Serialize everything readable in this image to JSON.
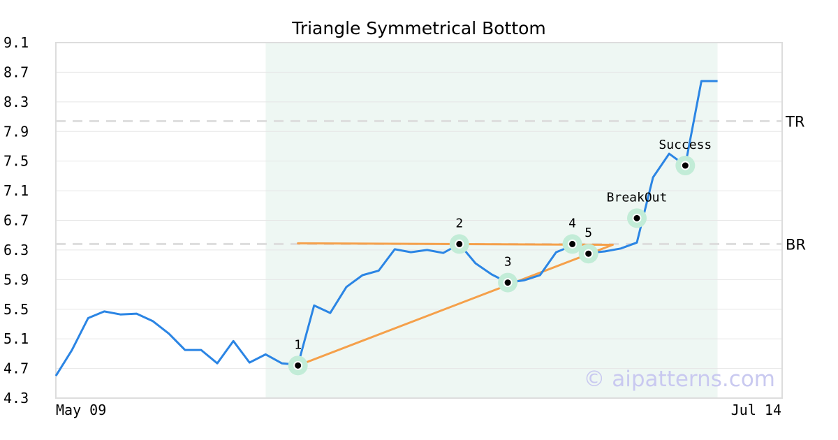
{
  "chart_data": {
    "type": "line",
    "title": "Triangle Symmetrical Bottom",
    "watermark": "© aipatterns.com",
    "x_labels": {
      "start": "May 09",
      "end": "Jul 14"
    },
    "y_ticks": [
      "9.1",
      "8.7",
      "8.3",
      "7.9",
      "7.5",
      "7.1",
      "6.7",
      "6.3",
      "5.9",
      "5.5",
      "5.1",
      "4.7",
      "4.3"
    ],
    "ylim": [
      4.3,
      9.1
    ],
    "xlim": [
      0,
      45
    ],
    "grid": true,
    "colors": {
      "price": "#2b85e4",
      "pattern": "#f5a04a",
      "shade": "#eef7f3",
      "marker_halo": "#c2ecd7",
      "reference": "#dddddd"
    },
    "pattern_region": {
      "x_start": 13,
      "x_end": 41
    },
    "reference_lines": [
      {
        "label": "TR",
        "y": 8.04
      },
      {
        "label": "BR",
        "y": 6.38
      }
    ],
    "price_series": [
      4.6,
      4.95,
      5.38,
      5.47,
      5.43,
      5.44,
      5.34,
      5.17,
      4.95,
      4.95,
      4.77,
      5.07,
      4.78,
      4.89,
      4.77,
      4.75,
      5.55,
      5.45,
      5.8,
      5.96,
      6.02,
      6.31,
      6.27,
      6.3,
      6.26,
      6.38,
      6.12,
      5.97,
      5.86,
      5.89,
      5.96,
      6.27,
      6.36,
      6.26,
      6.28,
      6.32,
      6.4,
      7.28,
      7.6,
      7.44,
      8.58,
      8.58
    ],
    "pattern_lines": [
      {
        "from": [
          15,
          6.39
        ],
        "to": [
          34.5,
          6.37
        ]
      },
      {
        "from": [
          15,
          4.74
        ],
        "to": [
          34.5,
          6.37
        ]
      }
    ],
    "points": [
      {
        "label": "1",
        "x": 15,
        "y": 4.74
      },
      {
        "label": "2",
        "x": 25,
        "y": 6.38
      },
      {
        "label": "3",
        "x": 28,
        "y": 5.86
      },
      {
        "label": "4",
        "x": 32,
        "y": 6.38
      },
      {
        "label": "5",
        "x": 33,
        "y": 6.25
      },
      {
        "label": "BreakOut",
        "x": 36,
        "y": 6.73
      },
      {
        "label": "Success",
        "x": 39,
        "y": 7.44
      }
    ]
  }
}
